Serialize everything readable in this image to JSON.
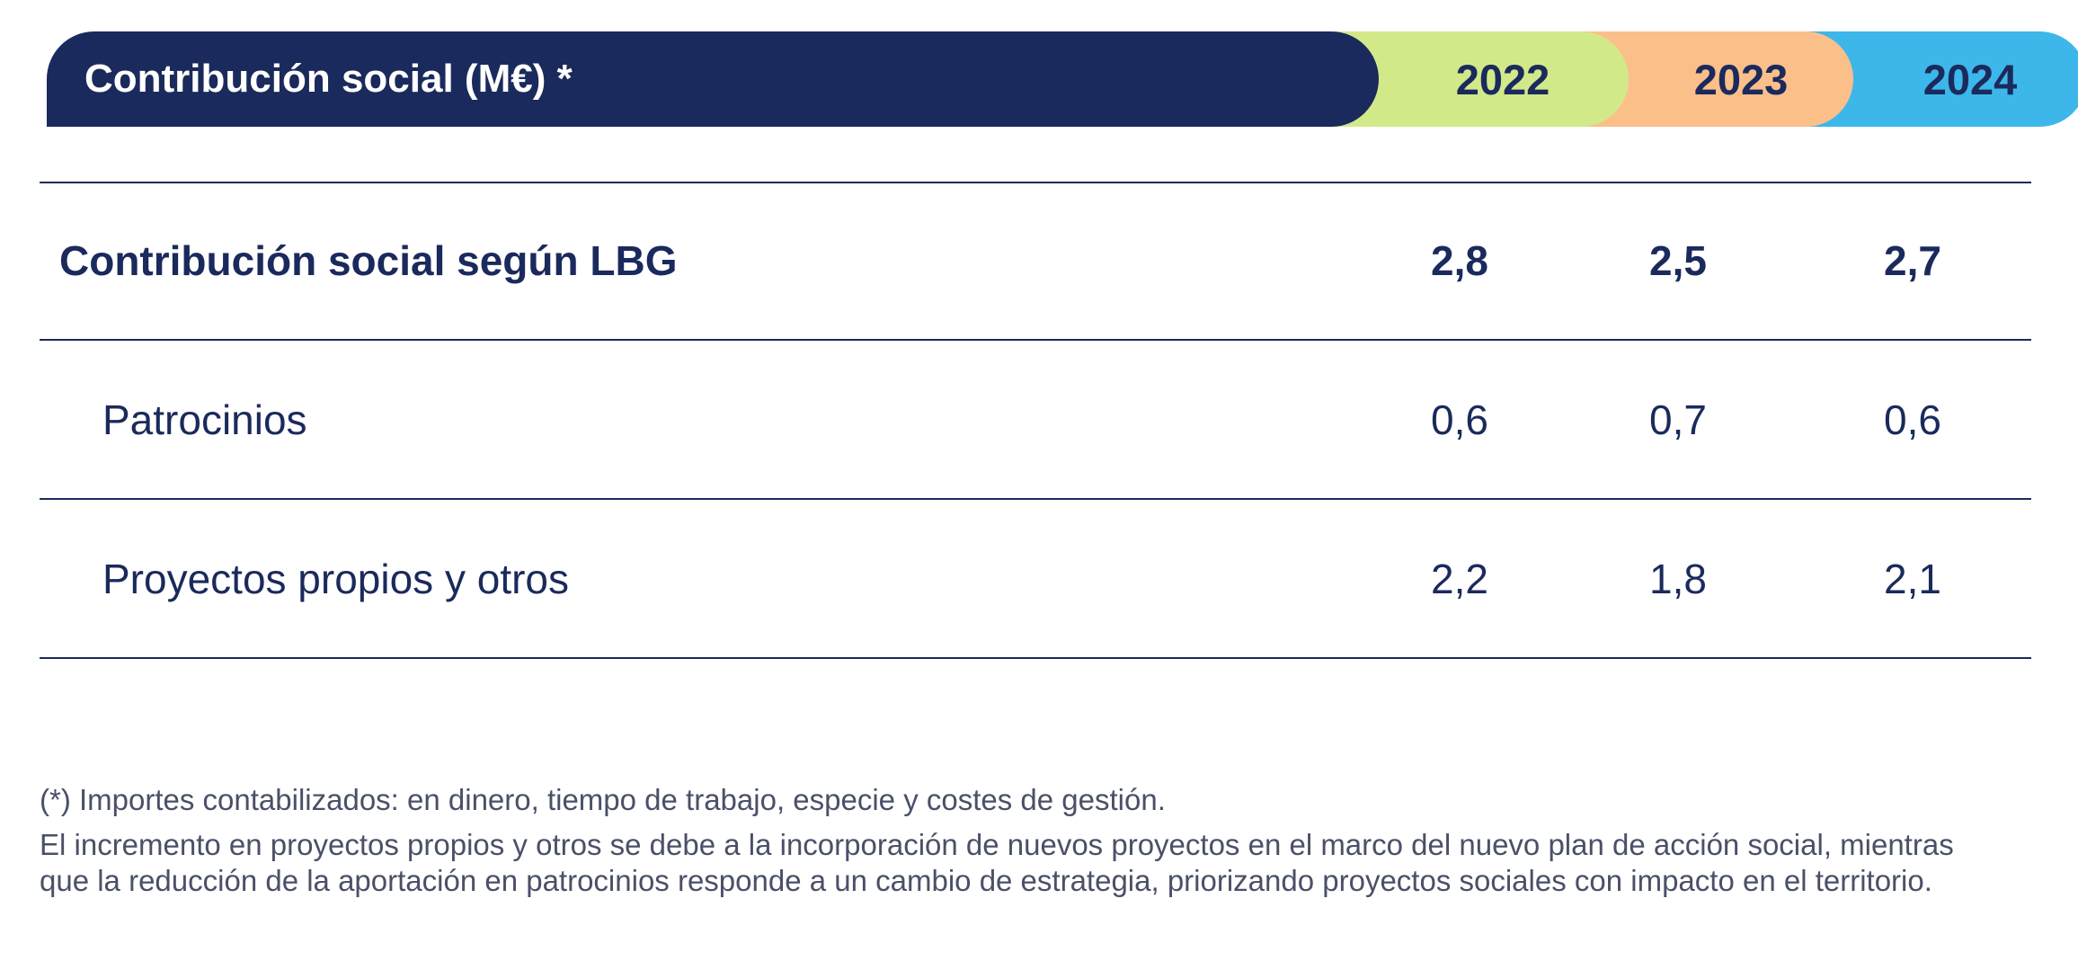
{
  "header": {
    "title": "Contribución social  (M€) *",
    "years": [
      "2022",
      "2023",
      "2024"
    ],
    "colors": {
      "title_bg": "#1b2a5c",
      "y2022": "#d2e98a",
      "y2023": "#fbbf8a",
      "y2024": "#3db7e9"
    }
  },
  "table": {
    "rows": [
      {
        "label": "Contribución social según LBG",
        "v2022": "2,8",
        "v2023": "2,5",
        "v2024": "2,7"
      },
      {
        "label": "Patrocinios",
        "v2022": "0,6",
        "v2023": "0,7",
        "v2024": "0,6"
      },
      {
        "label": "Proyectos propios y otros",
        "v2022": "2,2",
        "v2023": "1,8",
        "v2024": "2,1"
      }
    ]
  },
  "footnotes": {
    "asterisk": "(*) Importes contabilizados: en dinero, tiempo de trabajo, especie y costes de gestión.",
    "note": "El incremento en proyectos propios y otros se debe a la incorporación de nuevos proyectos en el marco del nuevo plan de acción social, mientras que la reducción de la aportación en patrocinios responde a un cambio de estrategia, priorizando proyectos sociales con impacto en el territorio."
  }
}
